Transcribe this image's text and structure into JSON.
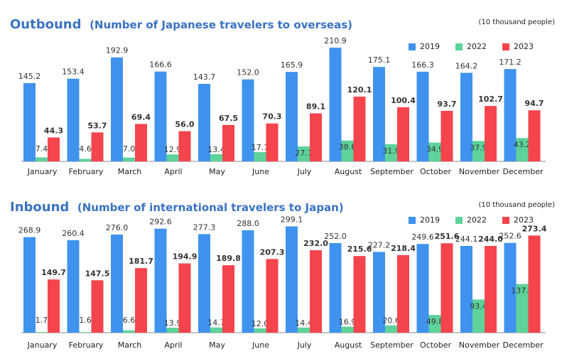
{
  "colors": {
    "2019": "#3f93ef",
    "2022": "#5dd39a",
    "2023": "#f5444c",
    "title": "#3a73c2"
  },
  "chart_data": [
    {
      "type": "bar",
      "title": "Outbound",
      "subtitle": "(Number of Japanese travelers to overseas)",
      "unit": "(10 thousand people)",
      "legend_position": "top-right",
      "categories": [
        "January",
        "February",
        "March",
        "April",
        "May",
        "June",
        "July",
        "August",
        "September",
        "October",
        "November",
        "December"
      ],
      "ylim": [
        0,
        225
      ],
      "series": [
        {
          "name": "2019",
          "values": [
            145.2,
            153.4,
            192.9,
            166.6,
            143.7,
            152.0,
            165.9,
            210.9,
            175.1,
            166.3,
            164.2,
            171.2
          ]
        },
        {
          "name": "2022",
          "values": [
            7.4,
            4.6,
            7.0,
            12.9,
            13.4,
            17.1,
            27.7,
            38.6,
            31.9,
            34.9,
            37.9,
            43.2
          ]
        },
        {
          "name": "2023",
          "values": [
            44.3,
            53.7,
            69.4,
            56.0,
            67.5,
            70.3,
            89.1,
            120.1,
            100.4,
            93.7,
            102.7,
            94.7
          ]
        }
      ]
    },
    {
      "type": "bar",
      "title": "Inbound",
      "subtitle": "(Number of international travelers to Japan)",
      "unit": "(10 thousand people)",
      "legend_position": "top-right",
      "categories": [
        "January",
        "February",
        "March",
        "April",
        "May",
        "June",
        "July",
        "August",
        "September",
        "October",
        "November",
        "December"
      ],
      "ylim": [
        0,
        320
      ],
      "series": [
        {
          "name": "2019",
          "values": [
            268.9,
            260.4,
            276.0,
            292.6,
            277.3,
            288.0,
            299.1,
            252.0,
            227.2,
            249.6,
            244.1,
            252.6
          ]
        },
        {
          "name": "2022",
          "values": [
            1.7,
            1.6,
            6.6,
            13.9,
            14.7,
            12.0,
            14.4,
            16.9,
            20.6,
            49.8,
            93.4,
            137.0
          ]
        },
        {
          "name": "2023",
          "values": [
            149.7,
            147.5,
            181.7,
            194.9,
            189.8,
            207.3,
            232.0,
            215.6,
            218.4,
            251.6,
            244.0,
            273.4
          ]
        }
      ]
    }
  ]
}
